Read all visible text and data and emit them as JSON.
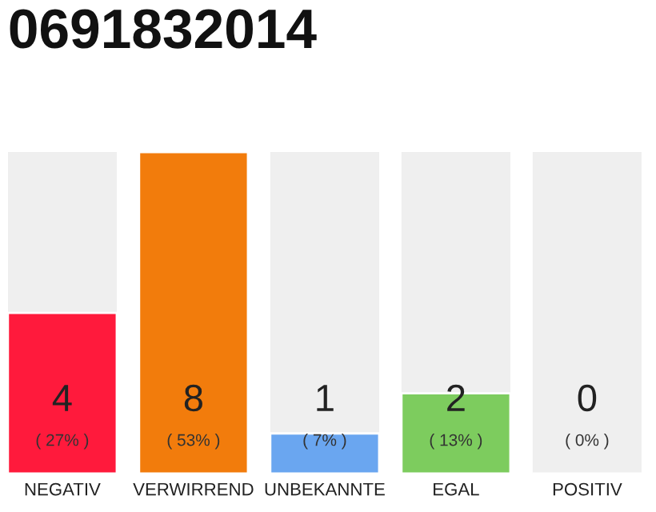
{
  "chart_data": {
    "type": "bar",
    "title": "0691832014",
    "categories": [
      "NEGATIV",
      "VERWIRREND",
      "UNBEKANNTE",
      "EGAL",
      "POSITIV"
    ],
    "values": [
      4,
      8,
      1,
      2,
      0
    ],
    "colors": [
      "#ff1a3c",
      "#f27c0c",
      "#6aa6f0",
      "#7dcc5e",
      null
    ],
    "ylim": [
      0,
      8
    ],
    "data_labels": true,
    "grid": false,
    "legend": false,
    "tick_labels": "x",
    "annotations": [
      "( 27% )",
      "( 53% )",
      "( 7% )",
      "( 13% )",
      "( 0% )"
    ]
  }
}
